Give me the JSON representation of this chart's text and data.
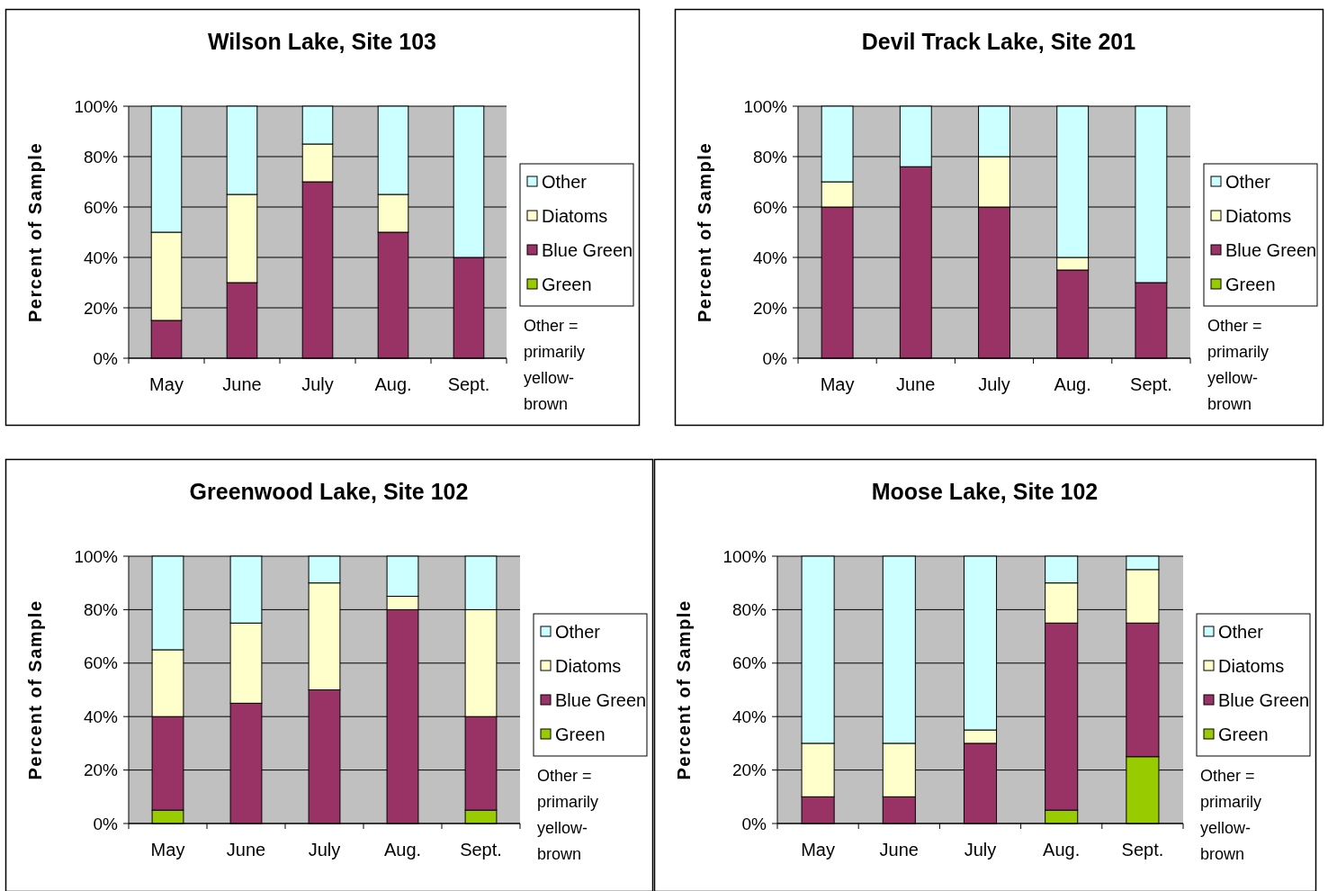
{
  "chart_data": [
    {
      "type": "bar",
      "title": "Wilson Lake, Site 103",
      "ylabel": "Percent of Sample",
      "categories": [
        "May",
        "June",
        "July",
        "Aug.",
        "Sept."
      ],
      "stacked": true,
      "ylim": [
        0,
        100
      ],
      "yticks": [
        {
          "value": 0,
          "label": "0%"
        },
        {
          "value": 20,
          "label": "20%"
        },
        {
          "value": 40,
          "label": "40%"
        },
        {
          "value": 60,
          "label": "60%"
        },
        {
          "value": 80,
          "label": "80%"
        },
        {
          "value": 100,
          "label": "100%"
        }
      ],
      "grid": "y",
      "legend": "right",
      "annotations": [
        "Other = primarily yellow-brown"
      ],
      "series": [
        {
          "name": "Green",
          "color": "#99cc00",
          "values": [
            0,
            0,
            0,
            0,
            0
          ]
        },
        {
          "name": "Blue Green",
          "color": "#993366",
          "values": [
            15,
            30,
            70,
            50,
            40
          ]
        },
        {
          "name": "Diatoms",
          "color": "#ffffcc",
          "values": [
            35,
            35,
            15,
            15,
            0
          ]
        },
        {
          "name": "Other",
          "color": "#ccffff",
          "values": [
            50,
            35,
            15,
            35,
            60
          ]
        }
      ]
    },
    {
      "type": "bar",
      "title": "Devil Track Lake, Site 201",
      "ylabel": "Percent of Sample",
      "categories": [
        "May",
        "June",
        "July",
        "Aug.",
        "Sept."
      ],
      "stacked": true,
      "ylim": [
        0,
        100
      ],
      "yticks": [
        {
          "value": 0,
          "label": "0%"
        },
        {
          "value": 20,
          "label": "20%"
        },
        {
          "value": 40,
          "label": "40%"
        },
        {
          "value": 60,
          "label": "60%"
        },
        {
          "value": 80,
          "label": "80%"
        },
        {
          "value": 100,
          "label": "100%"
        }
      ],
      "grid": "y",
      "legend": "right",
      "annotations": [
        "Other = primarily yellow-brown"
      ],
      "series": [
        {
          "name": "Green",
          "color": "#99cc00",
          "values": [
            0,
            0,
            0,
            0,
            0
          ]
        },
        {
          "name": "Blue Green",
          "color": "#993366",
          "values": [
            60,
            76,
            60,
            35,
            30
          ]
        },
        {
          "name": "Diatoms",
          "color": "#ffffcc",
          "values": [
            10,
            0,
            20,
            5,
            0
          ]
        },
        {
          "name": "Other",
          "color": "#ccffff",
          "values": [
            30,
            24,
            20,
            60,
            70
          ]
        }
      ]
    },
    {
      "type": "bar",
      "title": "Greenwood Lake, Site 102",
      "ylabel": "Percent of Sample",
      "categories": [
        "May",
        "June",
        "July",
        "Aug.",
        "Sept."
      ],
      "stacked": true,
      "ylim": [
        0,
        100
      ],
      "yticks": [
        {
          "value": 0,
          "label": "0%"
        },
        {
          "value": 20,
          "label": "20%"
        },
        {
          "value": 40,
          "label": "40%"
        },
        {
          "value": 60,
          "label": "60%"
        },
        {
          "value": 80,
          "label": "80%"
        },
        {
          "value": 100,
          "label": "100%"
        }
      ],
      "grid": "y",
      "legend": "right",
      "annotations": [
        "Other = primarily yellow-brown"
      ],
      "series": [
        {
          "name": "Green",
          "color": "#99cc00",
          "values": [
            5,
            0,
            0,
            0,
            5
          ]
        },
        {
          "name": "Blue Green",
          "color": "#993366",
          "values": [
            35,
            45,
            50,
            80,
            35
          ]
        },
        {
          "name": "Diatoms",
          "color": "#ffffcc",
          "values": [
            25,
            30,
            40,
            5,
            40
          ]
        },
        {
          "name": "Other",
          "color": "#ccffff",
          "values": [
            35,
            25,
            10,
            15,
            20
          ]
        }
      ]
    },
    {
      "type": "bar",
      "title": "Moose Lake, Site 102",
      "ylabel": "Percent of Sample",
      "categories": [
        "May",
        "June",
        "July",
        "Aug.",
        "Sept."
      ],
      "stacked": true,
      "ylim": [
        0,
        100
      ],
      "yticks": [
        {
          "value": 0,
          "label": "0%"
        },
        {
          "value": 20,
          "label": "20%"
        },
        {
          "value": 40,
          "label": "40%"
        },
        {
          "value": 60,
          "label": "60%"
        },
        {
          "value": 80,
          "label": "80%"
        },
        {
          "value": 100,
          "label": "100%"
        }
      ],
      "grid": "y",
      "legend": "right",
      "annotations": [
        "Other = primarily yellow-brown"
      ],
      "series": [
        {
          "name": "Green",
          "color": "#99cc00",
          "values": [
            0,
            0,
            0,
            5,
            25
          ]
        },
        {
          "name": "Blue Green",
          "color": "#993366",
          "values": [
            10,
            10,
            30,
            70,
            50
          ]
        },
        {
          "name": "Diatoms",
          "color": "#ffffcc",
          "values": [
            20,
            20,
            5,
            15,
            20
          ]
        },
        {
          "name": "Other",
          "color": "#ccffff",
          "values": [
            70,
            70,
            65,
            10,
            5
          ]
        }
      ]
    }
  ]
}
